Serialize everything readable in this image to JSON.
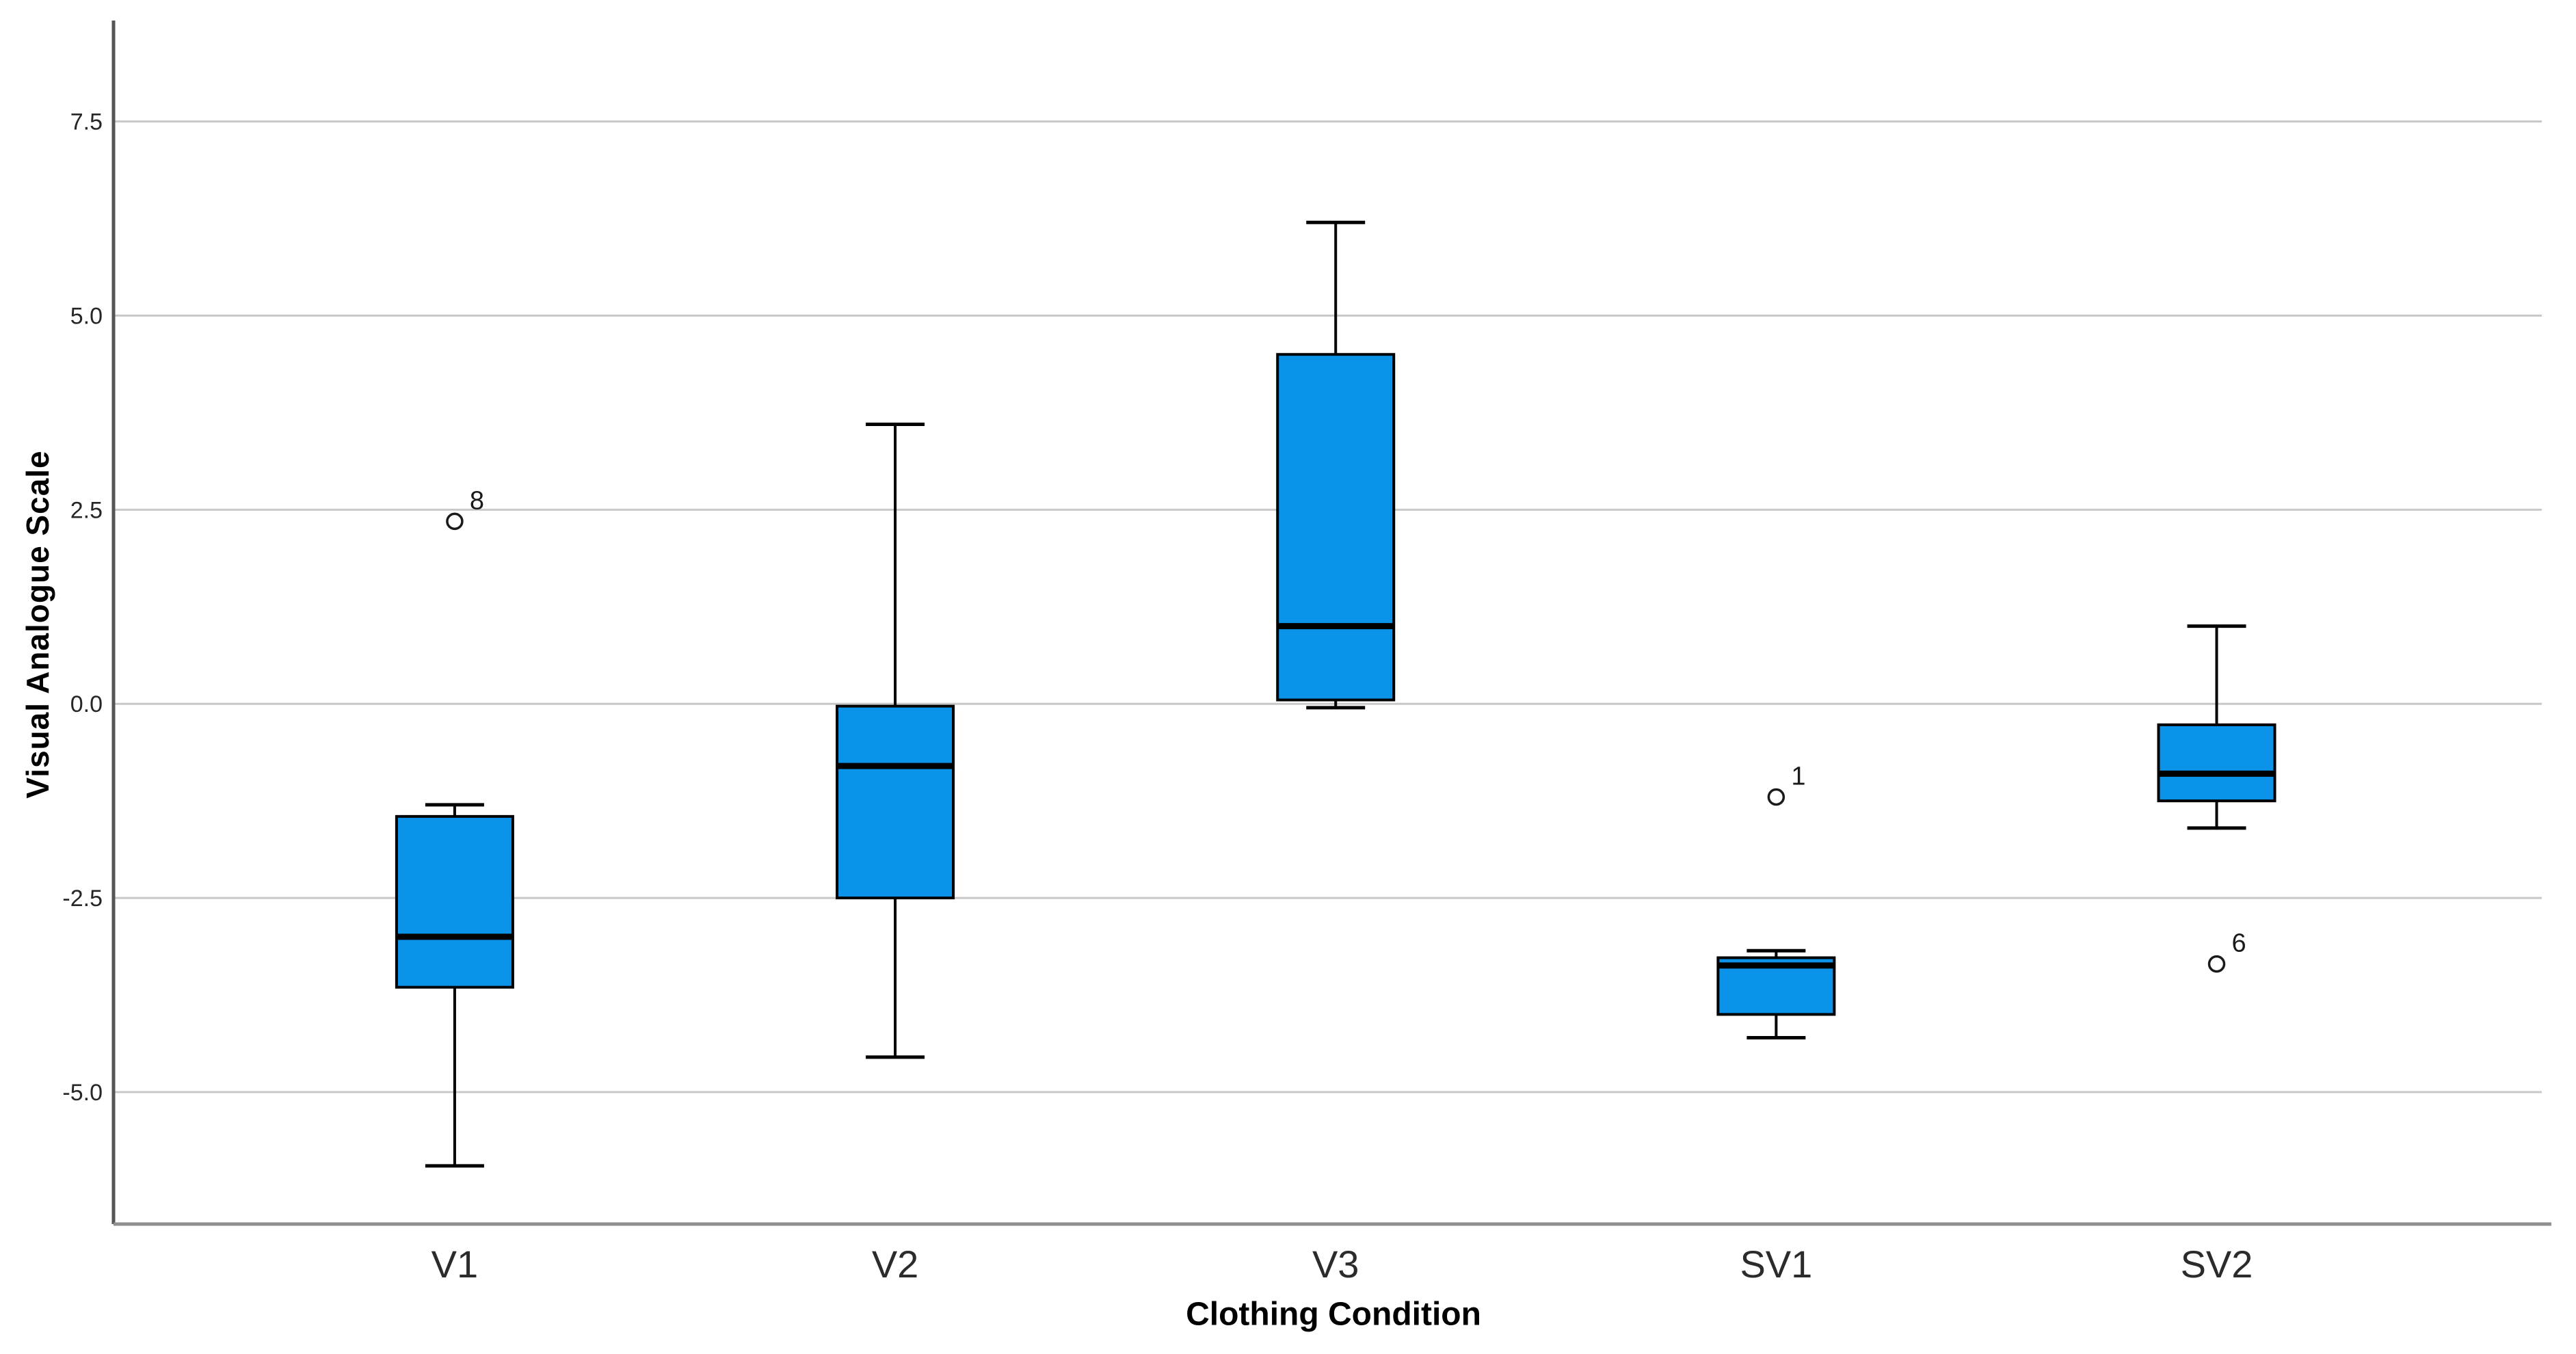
{
  "page": {
    "background": "#ffffff"
  },
  "chart_data": {
    "type": "boxplot",
    "title": "",
    "xlabel": "Clothing Condition",
    "ylabel": "Visual Analogue Scale",
    "categories": [
      "V1",
      "V2",
      "V3",
      "SV1",
      "SV2"
    ],
    "yticks": [
      7.5,
      5.0,
      2.5,
      0.0,
      -2.5,
      -5.0
    ],
    "ytick_labels": [
      "7.5",
      "5.0",
      "2.5",
      "0.0",
      "-2.5",
      "-5.0"
    ],
    "ylim": [
      -6.7,
      8.8
    ],
    "grid": "horizontal-only",
    "legend": "none",
    "boxes": [
      {
        "category": "V1",
        "whisker_low": -5.95,
        "q1": -3.65,
        "median": -3.0,
        "q3": -1.45,
        "whisker_high": -1.3,
        "outliers": [
          {
            "value": 2.35,
            "label": "8"
          }
        ]
      },
      {
        "category": "V2",
        "whisker_low": -4.55,
        "q1": -2.5,
        "median": -0.8,
        "q3": -0.03,
        "whisker_high": 3.6,
        "outliers": []
      },
      {
        "category": "V3",
        "whisker_low": -0.05,
        "q1": 0.05,
        "median": 1.0,
        "q3": 4.5,
        "whisker_high": 6.2,
        "outliers": []
      },
      {
        "category": "SV1",
        "whisker_low": -4.3,
        "q1": -4.0,
        "median": -3.37,
        "q3": -3.27,
        "whisker_high": -3.18,
        "outliers": [
          {
            "value": -1.2,
            "label": "1"
          }
        ]
      },
      {
        "category": "SV2",
        "whisker_low": -1.6,
        "q1": -1.25,
        "median": -0.9,
        "q3": -0.27,
        "whisker_high": 1.0,
        "outliers": [
          {
            "value": -3.35,
            "label": "6"
          }
        ]
      }
    ],
    "colors": {
      "box_fill": "#0A93E9",
      "box_border": "#000000",
      "median_line": "#000000",
      "whisker": "#000000",
      "outlier_stroke": "#1a1a1a",
      "gridline": "#C8C8C8",
      "y_axis_line": "#555555",
      "x_axis_line": "#8F8F8F",
      "tick_text": "#262626"
    }
  }
}
